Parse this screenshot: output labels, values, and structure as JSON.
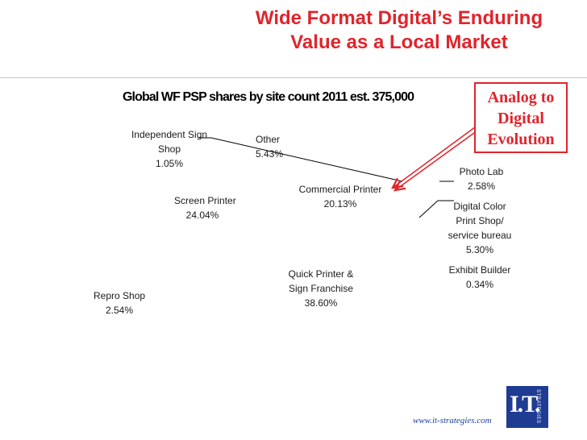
{
  "slide": {
    "title_line1": "Wide Format Digital’s Enduring",
    "title_line2": "Value as a Local Market",
    "callout_lines": [
      "Analog to",
      "Digital",
      "Evolution"
    ],
    "footer_url": "www.it-strategies.com",
    "logo_text": "I.T.",
    "logo_subtext": "STRATEGIES"
  },
  "colors": {
    "title": "#e0242b",
    "callout": "#e0242b",
    "arrow": "#e0242b",
    "footer": "#1a3ea8",
    "logo_bg": "#1f3c93"
  },
  "chart_data": {
    "type": "pie",
    "title": "Global WF PSP shares by site count 2011 est. 375,000",
    "slices": [
      {
        "lines": [
          "Independent Sign",
          "Shop"
        ],
        "value": 1.05,
        "value_label": "1.05%"
      },
      {
        "lines": [
          "Other"
        ],
        "value": 5.43,
        "value_label": "5.43%"
      },
      {
        "lines": [
          "Commercial Printer"
        ],
        "value": 20.13,
        "value_label": "20.13%"
      },
      {
        "lines": [
          "Photo Lab"
        ],
        "value": 2.58,
        "value_label": "2.58%"
      },
      {
        "lines": [
          "Digital Color",
          "Print Shop/",
          "service bureau"
        ],
        "value": 5.3,
        "value_label": "5.30%"
      },
      {
        "lines": [
          "Exhibit Builder"
        ],
        "value": 0.34,
        "value_label": "0.34%"
      },
      {
        "lines": [
          "Quick Printer  &",
          "Sign Franchise"
        ],
        "value": 38.6,
        "value_label": "38.60%"
      },
      {
        "lines": [
          "Screen Printer"
        ],
        "value": 24.04,
        "value_label": "24.04%"
      },
      {
        "lines": [
          "Repro Shop"
        ],
        "value": 2.54,
        "value_label": "2.54%"
      }
    ]
  }
}
